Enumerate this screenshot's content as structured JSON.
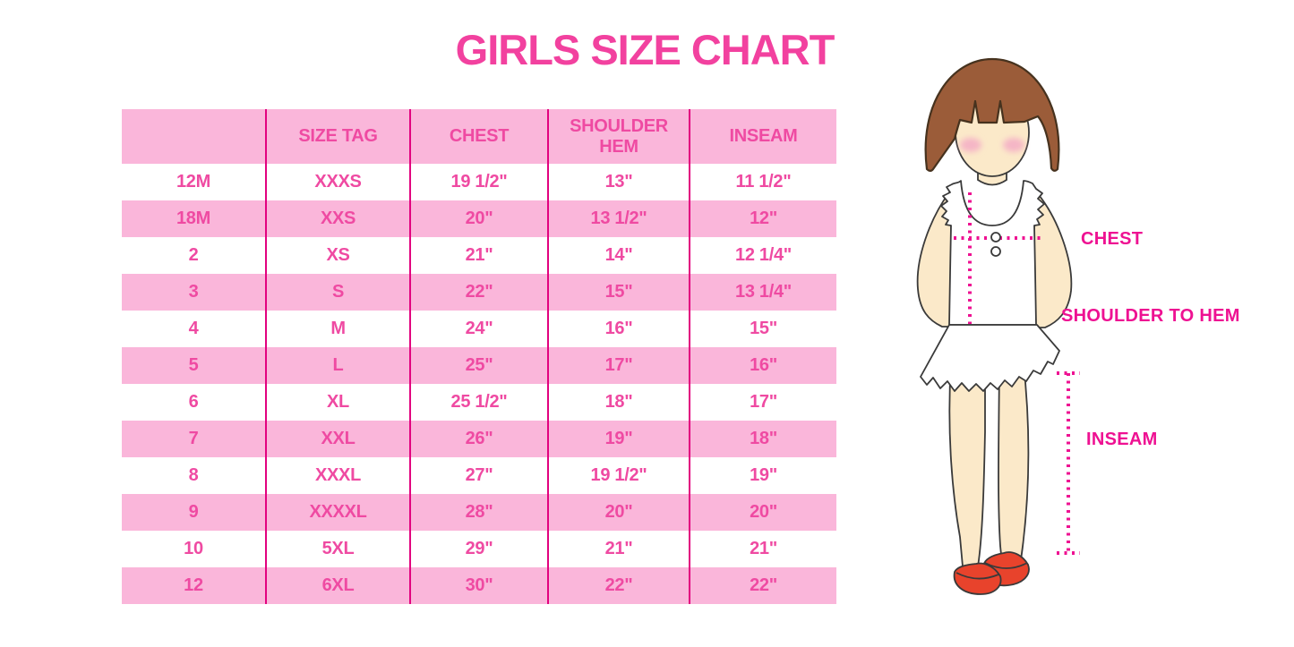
{
  "title": "GIRLS SIZE CHART",
  "table": {
    "headers": [
      "",
      "SIZE TAG",
      "CHEST",
      "SHOULDER HEM",
      "INSEAM"
    ],
    "rows": [
      [
        "12M",
        "XXXS",
        "19 1/2\"",
        "13\"",
        "11 1/2\""
      ],
      [
        "18M",
        "XXS",
        "20\"",
        "13 1/2\"",
        "12\""
      ],
      [
        "2",
        "XS",
        "21\"",
        "14\"",
        "12 1/4\""
      ],
      [
        "3",
        "S",
        "22\"",
        "15\"",
        "13 1/4\""
      ],
      [
        "4",
        "M",
        "24\"",
        "16\"",
        "15\""
      ],
      [
        "5",
        "L",
        "25\"",
        "17\"",
        "16\""
      ],
      [
        "6",
        "XL",
        "25 1/2\"",
        "18\"",
        "17\""
      ],
      [
        "7",
        "XXL",
        "26\"",
        "19\"",
        "18\""
      ],
      [
        "8",
        "XXXL",
        "27\"",
        "19 1/2\"",
        "19\""
      ],
      [
        "9",
        "XXXXL",
        "28\"",
        "20\"",
        "20\""
      ],
      [
        "10",
        "5XL",
        "29\"",
        "21\"",
        "21\""
      ],
      [
        "12",
        "6XL",
        "30\"",
        "22\"",
        "22\""
      ]
    ]
  },
  "figure": {
    "labels": {
      "chest": "CHEST",
      "shoulder_to_hem": "SHOULDER TO HEM",
      "inseam": "INSEAM"
    }
  },
  "colors": {
    "title-pink": "#F2419F",
    "row-pink": "#FAB6DA",
    "text-pink": "#EF4AA2",
    "divider-pink": "#E2017F",
    "magenta": "#EE1192",
    "hair-brown": "#9B5C39",
    "hair-outline": "#46321E",
    "skin": "#FBE9C9",
    "blush": "#F5B6C6",
    "shoe-red": "#E8432C",
    "outline": "#3A3A3A"
  }
}
